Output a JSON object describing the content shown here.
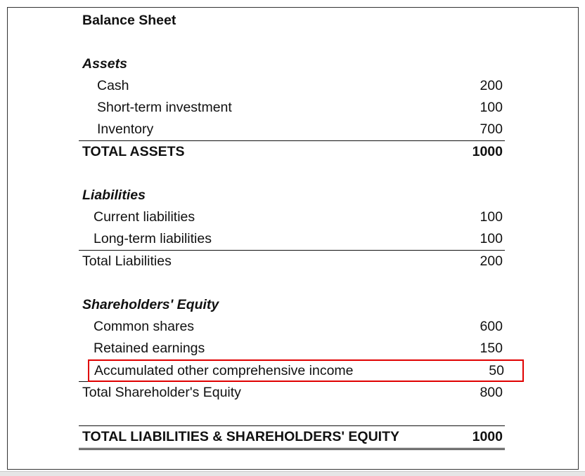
{
  "title": "Balance Sheet",
  "assets": {
    "heading": "Assets",
    "items": [
      {
        "label": "Cash",
        "value": "200"
      },
      {
        "label": "Short-term investment",
        "value": "100"
      },
      {
        "label": "Inventory",
        "value": "700"
      }
    ],
    "total": {
      "label": "TOTAL ASSETS",
      "value": "1000"
    }
  },
  "liabilities": {
    "heading": "Liabilities",
    "items": [
      {
        "label": "Current liabilities",
        "value": "100"
      },
      {
        "label": "Long-term liabilities",
        "value": "100"
      }
    ],
    "total": {
      "label": "Total Liabilities",
      "value": "200"
    }
  },
  "equity": {
    "heading": "Shareholders' Equity",
    "items": [
      {
        "label": "Common shares",
        "value": "600"
      },
      {
        "label": "Retained earnings",
        "value": "150"
      },
      {
        "label": "Accumulated other comprehensive income",
        "value": "50",
        "highlighted": true
      }
    ],
    "total": {
      "label": "Total Shareholder's Equity",
      "value": "800"
    }
  },
  "grand_total": {
    "label": "TOTAL LIABILITIES & SHAREHOLDERS' EQUITY",
    "value": "1000"
  },
  "colors": {
    "highlight_border": "#e00000"
  }
}
